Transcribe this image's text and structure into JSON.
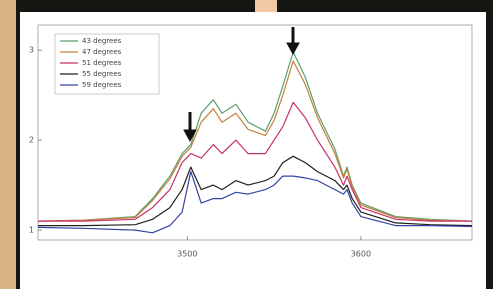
{
  "chart_data": {
    "type": "line",
    "x": [
      3414,
      3440,
      3470,
      3480,
      3490,
      3497,
      3502,
      3508,
      3515,
      3520,
      3528,
      3535,
      3545,
      3550,
      3555,
      3561,
      3568,
      3575,
      3585,
      3590,
      3592,
      3595,
      3600,
      3620,
      3640,
      3664
    ],
    "series": [
      {
        "name": "43 degrees",
        "color": "#5c9e6e",
        "values": [
          1.1,
          1.11,
          1.15,
          1.35,
          1.6,
          1.85,
          1.95,
          2.3,
          2.45,
          2.3,
          2.4,
          2.2,
          2.1,
          2.3,
          2.6,
          2.98,
          2.7,
          2.3,
          1.9,
          1.6,
          1.7,
          1.5,
          1.3,
          1.15,
          1.12,
          1.1
        ]
      },
      {
        "name": "47 degrees",
        "color": "#c4803c",
        "values": [
          1.1,
          1.11,
          1.14,
          1.33,
          1.57,
          1.82,
          1.92,
          2.2,
          2.35,
          2.2,
          2.3,
          2.12,
          2.05,
          2.22,
          2.5,
          2.88,
          2.62,
          2.25,
          1.85,
          1.58,
          1.68,
          1.48,
          1.28,
          1.14,
          1.11,
          1.1
        ]
      },
      {
        "name": "51 degrees",
        "color": "#c8306e",
        "values": [
          1.1,
          1.1,
          1.12,
          1.25,
          1.45,
          1.75,
          1.85,
          1.8,
          1.95,
          1.85,
          2.0,
          1.85,
          1.85,
          2.0,
          2.15,
          2.42,
          2.25,
          2.0,
          1.7,
          1.5,
          1.6,
          1.45,
          1.25,
          1.12,
          1.1,
          1.1
        ]
      },
      {
        "name": "55 degrees",
        "color": "#202020",
        "values": [
          1.05,
          1.05,
          1.06,
          1.12,
          1.25,
          1.45,
          1.7,
          1.45,
          1.5,
          1.45,
          1.55,
          1.5,
          1.55,
          1.6,
          1.75,
          1.82,
          1.75,
          1.65,
          1.55,
          1.45,
          1.5,
          1.35,
          1.2,
          1.08,
          1.06,
          1.05
        ]
      },
      {
        "name": "59 degrees",
        "color": "#3444a4",
        "values": [
          1.03,
          1.02,
          1.0,
          0.97,
          1.05,
          1.2,
          1.65,
          1.3,
          1.35,
          1.35,
          1.42,
          1.4,
          1.45,
          1.5,
          1.6,
          1.6,
          1.58,
          1.55,
          1.45,
          1.4,
          1.45,
          1.3,
          1.15,
          1.05,
          1.05,
          1.04
        ]
      }
    ],
    "xlim": [
      3414,
      3664
    ],
    "xticks": [
      3500,
      3600
    ],
    "ylim": [
      0.89,
      3.28
    ],
    "yticks": [
      1,
      2,
      3
    ]
  }
}
